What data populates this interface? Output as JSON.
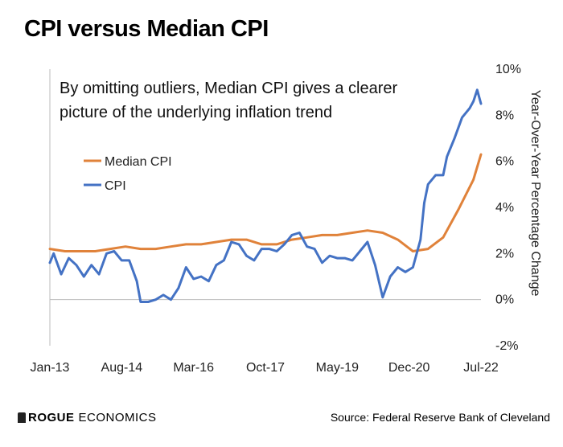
{
  "title": "CPI versus Median CPI",
  "footer": {
    "logo_bold": "ROGUE",
    "logo_rest": "ECONOMICS",
    "source": "Source: Federal Reserve Bank of Cleveland"
  },
  "chart_data": {
    "type": "line",
    "title": "CPI versus Median CPI",
    "annotation": [
      "By omitting outliers, Median CPI gives a clearer",
      "picture of the underlying inflation trend"
    ],
    "ylabel": "Year-Over-Year Percentage Change",
    "xlabel": "",
    "ylim": [
      -2,
      10
    ],
    "yticks": [
      "-2%",
      "0%",
      "2%",
      "4%",
      "6%",
      "8%",
      "10%"
    ],
    "y_axis_position": "right",
    "grid": false,
    "legend_position": "top-left",
    "x_tick_labels": [
      "Jan-13",
      "Aug-14",
      "Mar-16",
      "Oct-17",
      "May-19",
      "Dec-20",
      "Jul-22"
    ],
    "x_range_months": [
      "Jan-13",
      "Jul-22"
    ],
    "series": [
      {
        "name": "Median CPI",
        "color": "#E0823A",
        "points": [
          [
            "Jan-13",
            2.2
          ],
          [
            "May-13",
            2.1
          ],
          [
            "Sep-13",
            2.1
          ],
          [
            "Jan-14",
            2.1
          ],
          [
            "May-14",
            2.2
          ],
          [
            "Sep-14",
            2.3
          ],
          [
            "Jan-15",
            2.2
          ],
          [
            "May-15",
            2.2
          ],
          [
            "Sep-15",
            2.3
          ],
          [
            "Jan-16",
            2.4
          ],
          [
            "May-16",
            2.4
          ],
          [
            "Sep-16",
            2.5
          ],
          [
            "Jan-17",
            2.6
          ],
          [
            "May-17",
            2.6
          ],
          [
            "Sep-17",
            2.4
          ],
          [
            "Jan-18",
            2.4
          ],
          [
            "May-18",
            2.6
          ],
          [
            "Sep-18",
            2.7
          ],
          [
            "Jan-19",
            2.8
          ],
          [
            "May-19",
            2.8
          ],
          [
            "Sep-19",
            2.9
          ],
          [
            "Jan-20",
            3.0
          ],
          [
            "May-20",
            2.9
          ],
          [
            "Sep-20",
            2.6
          ],
          [
            "Jan-21",
            2.1
          ],
          [
            "May-21",
            2.2
          ],
          [
            "Sep-21",
            2.7
          ],
          [
            "Jan-22",
            3.9
          ],
          [
            "May-22",
            5.2
          ],
          [
            "Jul-22",
            6.3
          ]
        ]
      },
      {
        "name": "CPI",
        "color": "#4472C4",
        "points": [
          [
            "Jan-13",
            1.6
          ],
          [
            "Feb-13",
            2.0
          ],
          [
            "Apr-13",
            1.1
          ],
          [
            "Jun-13",
            1.8
          ],
          [
            "Aug-13",
            1.5
          ],
          [
            "Oct-13",
            1.0
          ],
          [
            "Dec-13",
            1.5
          ],
          [
            "Feb-14",
            1.1
          ],
          [
            "Apr-14",
            2.0
          ],
          [
            "Jun-14",
            2.1
          ],
          [
            "Aug-14",
            1.7
          ],
          [
            "Oct-14",
            1.7
          ],
          [
            "Dec-14",
            0.8
          ],
          [
            "Jan-15",
            -0.1
          ],
          [
            "Mar-15",
            -0.1
          ],
          [
            "May-15",
            0.0
          ],
          [
            "Jul-15",
            0.2
          ],
          [
            "Sep-15",
            0.0
          ],
          [
            "Nov-15",
            0.5
          ],
          [
            "Jan-16",
            1.4
          ],
          [
            "Mar-16",
            0.9
          ],
          [
            "May-16",
            1.0
          ],
          [
            "Jul-16",
            0.8
          ],
          [
            "Sep-16",
            1.5
          ],
          [
            "Nov-16",
            1.7
          ],
          [
            "Jan-17",
            2.5
          ],
          [
            "Mar-17",
            2.4
          ],
          [
            "May-17",
            1.9
          ],
          [
            "Jul-17",
            1.7
          ],
          [
            "Sep-17",
            2.2
          ],
          [
            "Nov-17",
            2.2
          ],
          [
            "Jan-18",
            2.1
          ],
          [
            "Mar-18",
            2.4
          ],
          [
            "May-18",
            2.8
          ],
          [
            "Jul-18",
            2.9
          ],
          [
            "Sep-18",
            2.3
          ],
          [
            "Nov-18",
            2.2
          ],
          [
            "Jan-19",
            1.6
          ],
          [
            "Mar-19",
            1.9
          ],
          [
            "May-19",
            1.8
          ],
          [
            "Jul-19",
            1.8
          ],
          [
            "Sep-19",
            1.7
          ],
          [
            "Nov-19",
            2.1
          ],
          [
            "Jan-20",
            2.5
          ],
          [
            "Mar-20",
            1.5
          ],
          [
            "May-20",
            0.1
          ],
          [
            "Jul-20",
            1.0
          ],
          [
            "Sep-20",
            1.4
          ],
          [
            "Nov-20",
            1.2
          ],
          [
            "Jan-21",
            1.4
          ],
          [
            "Mar-21",
            2.6
          ],
          [
            "Apr-21",
            4.2
          ],
          [
            "May-21",
            5.0
          ],
          [
            "Jul-21",
            5.4
          ],
          [
            "Sep-21",
            5.4
          ],
          [
            "Oct-21",
            6.2
          ],
          [
            "Dec-21",
            7.0
          ],
          [
            "Feb-22",
            7.9
          ],
          [
            "Apr-22",
            8.3
          ],
          [
            "May-22",
            8.6
          ],
          [
            "Jun-22",
            9.1
          ],
          [
            "Jul-22",
            8.5
          ]
        ]
      }
    ]
  }
}
